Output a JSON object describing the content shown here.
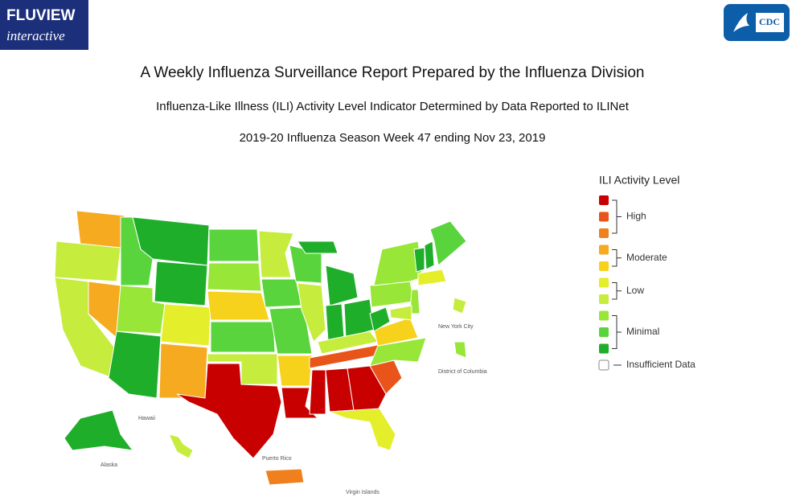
{
  "header": {
    "logo_title": "FLUVIEW",
    "logo_subtitle": "interactive",
    "agency": "CDC"
  },
  "titles": [
    "A Weekly Influenza Surveillance Report Prepared by the Influenza Division",
    "Influenza-Like Illness (ILI) Activity Level Indicator Determined by Data Reported to ILINet",
    "2019-20 Influenza Season Week 47 ending Nov 23, 2019"
  ],
  "legend": {
    "title": "ILI Activity Level",
    "groups": [
      {
        "label": "High",
        "colors": [
          "#c80000",
          "#e8541a",
          "#f0801e"
        ]
      },
      {
        "label": "Moderate",
        "colors": [
          "#f5aa20",
          "#f7d21c"
        ]
      },
      {
        "label": "Low",
        "colors": [
          "#e4ee2a",
          "#c6ec3e"
        ]
      },
      {
        "label": "Minimal",
        "colors": [
          "#98e638",
          "#5ad43c",
          "#1fae2a"
        ]
      }
    ],
    "insufficient": {
      "label": "Insufficient Data",
      "color": "#ffffff"
    }
  },
  "map_labels": [
    "New York City",
    "District of Columbia",
    "Hawaii",
    "Alaska",
    "Puerto Rico",
    "Virgin Islands"
  ]
}
